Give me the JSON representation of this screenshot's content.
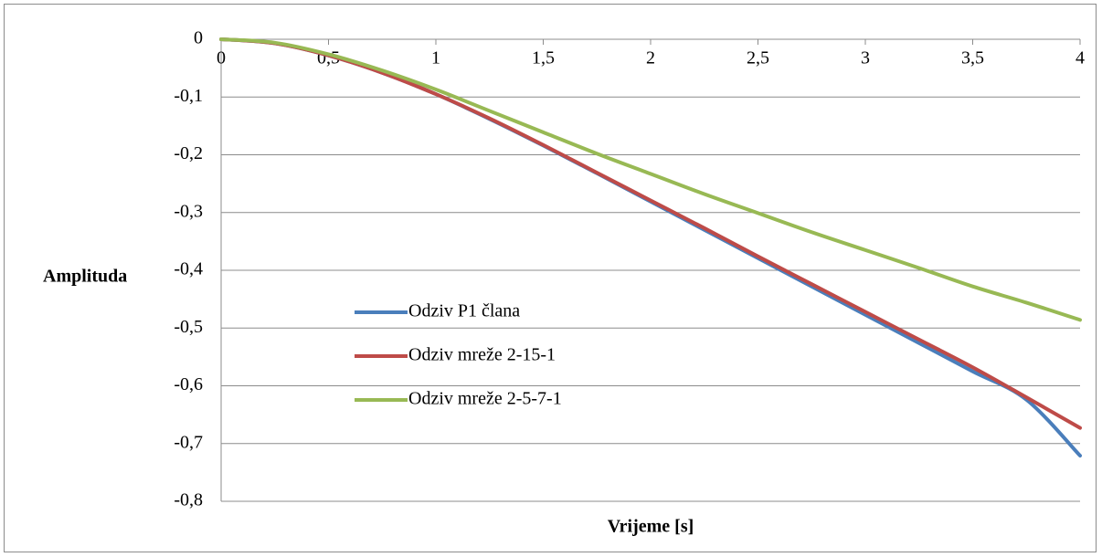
{
  "chart_data": {
    "type": "line",
    "title": "",
    "xlabel": "Vrijeme [s]",
    "ylabel": "Amplituda",
    "xlim": [
      0,
      4
    ],
    "ylim": [
      -0.8,
      0
    ],
    "x_ticks": [
      0,
      0.5,
      1,
      1.5,
      2,
      2.5,
      3,
      3.5,
      4
    ],
    "x_tick_labels": [
      "0",
      "0,5",
      "1",
      "1,5",
      "2",
      "2,5",
      "3",
      "3,5",
      "4"
    ],
    "y_ticks": [
      0,
      -0.1,
      -0.2,
      -0.3,
      -0.4,
      -0.5,
      -0.6,
      -0.7,
      -0.8
    ],
    "y_tick_labels": [
      "0",
      "-0,1",
      "-0,2",
      "-0,3",
      "-0,4",
      "-0,5",
      "-0,6",
      "-0,7",
      "-0,8"
    ],
    "grid": true,
    "legend_position": "center-left",
    "x": [
      0,
      0.25,
      0.5,
      0.75,
      1,
      1.25,
      1.5,
      1.75,
      2,
      2.25,
      2.5,
      2.75,
      3,
      3.25,
      3.5,
      3.75,
      4
    ],
    "series": [
      {
        "name": "Odziv P1 člana",
        "color": "#4a7ebb",
        "values": [
          0,
          -0.007,
          -0.028,
          -0.058,
          -0.095,
          -0.138,
          -0.184,
          -0.232,
          -0.281,
          -0.33,
          -0.379,
          -0.428,
          -0.477,
          -0.526,
          -0.575,
          -0.624,
          -0.721
        ]
      },
      {
        "name": "Odziv mreže 2-15-1",
        "color": "#be4b48",
        "values": [
          0,
          -0.007,
          -0.028,
          -0.058,
          -0.095,
          -0.137,
          -0.183,
          -0.231,
          -0.279,
          -0.327,
          -0.376,
          -0.424,
          -0.472,
          -0.52,
          -0.568,
          -0.62,
          -0.673
        ]
      },
      {
        "name": "Odziv mreže 2-5-7-1",
        "color": "#98b954",
        "values": [
          0,
          -0.006,
          -0.026,
          -0.054,
          -0.087,
          -0.124,
          -0.161,
          -0.198,
          -0.233,
          -0.268,
          -0.301,
          -0.334,
          -0.365,
          -0.396,
          -0.428,
          -0.456,
          -0.486
        ]
      }
    ]
  }
}
